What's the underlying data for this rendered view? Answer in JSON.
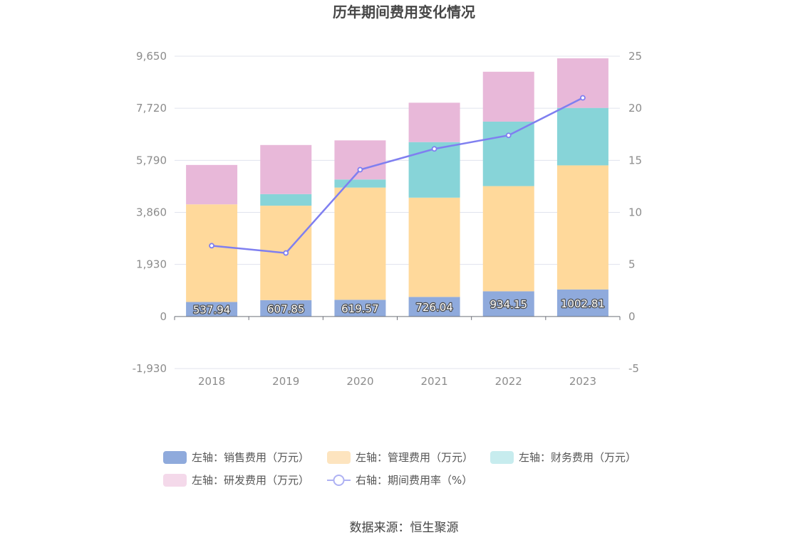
{
  "chart_data": {
    "type": "bar",
    "title": "历年期间费用变化情况",
    "categories": [
      "2018",
      "2019",
      "2020",
      "2021",
      "2022",
      "2023"
    ],
    "stacked": true,
    "series": [
      {
        "name": "左轴：销售费用（万元）",
        "axis": "left",
        "type": "bar",
        "color": "#8faadc",
        "values": [
          537.94,
          607.85,
          619.57,
          726.04,
          934.15,
          1002.81
        ],
        "labels": [
          "537.94",
          "607.85",
          "619.57",
          "726.04",
          "934.15",
          "1002.81"
        ]
      },
      {
        "name": "左轴：管理费用（万元）",
        "axis": "left",
        "type": "bar",
        "color": "#ffd99b",
        "values": [
          3620,
          3500,
          4160,
          3680,
          3900,
          4600
        ]
      },
      {
        "name": "左轴：财务费用（万元）",
        "axis": "left",
        "type": "bar",
        "color": "#87d4d8",
        "values": [
          0,
          430,
          300,
          2060,
          2390,
          2130
        ]
      },
      {
        "name": "左轴：研发费用（万元）",
        "axis": "left",
        "type": "bar",
        "color": "#e8b8d9",
        "values": [
          1460,
          1820,
          1450,
          1460,
          1850,
          1840
        ]
      },
      {
        "name": "右轴：期间费用率（%）",
        "axis": "right",
        "type": "line",
        "color": "#7f7ff0",
        "values": [
          6.8,
          6.1,
          14.1,
          16.1,
          17.4,
          21.0
        ]
      }
    ],
    "y_left": {
      "ticks": [
        "9,650",
        "7,720",
        "5,790",
        "3,860",
        "1,930",
        "0",
        "-1,930"
      ],
      "tick_values": [
        9650,
        7720,
        5790,
        3860,
        1930,
        0,
        -1930
      ],
      "ylim": [
        -1930,
        9650
      ]
    },
    "y_right": {
      "ticks": [
        "25",
        "20",
        "15",
        "10",
        "5",
        "0",
        "-5"
      ],
      "tick_values": [
        25,
        20,
        15,
        10,
        5,
        0,
        -5
      ],
      "ylim": [
        -5,
        25
      ]
    },
    "legend_position": "bottom",
    "grid": true
  },
  "source": "数据来源：恒生聚源"
}
